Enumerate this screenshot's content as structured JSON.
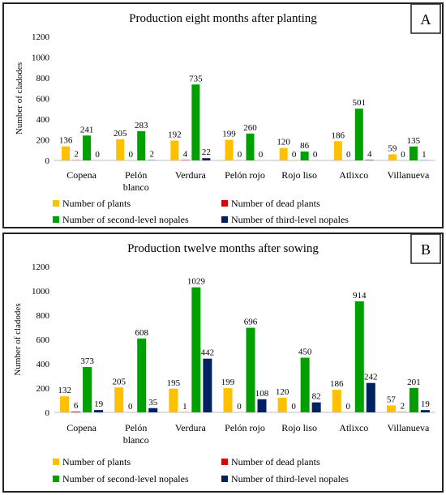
{
  "chart_data": [
    {
      "type": "bar",
      "panel_letter": "A",
      "title": "Production eight months after planting",
      "ylabel": "Number of cladodes",
      "xlabel": "",
      "ylim": [
        0,
        1200
      ],
      "yticks": [
        0,
        200,
        400,
        600,
        800,
        1000,
        1200
      ],
      "grid": false,
      "legend_position": "bottom",
      "categories": [
        [
          "Copena"
        ],
        [
          "Pelón",
          "blanco"
        ],
        [
          "Verdura"
        ],
        [
          "Pelón rojo"
        ],
        [
          "Rojo liso"
        ],
        [
          "Atlixco"
        ],
        [
          "Villanueva"
        ]
      ],
      "series": [
        {
          "name": "Number of plants",
          "color": "#FFC000",
          "values": [
            136,
            205,
            192,
            199,
            120,
            186,
            59
          ]
        },
        {
          "name": "Number of dead plants",
          "color": "#E00000",
          "values": [
            2,
            0,
            4,
            0,
            0,
            0,
            0
          ]
        },
        {
          "name": "Number of second-level nopales",
          "color": "#00A000",
          "values": [
            241,
            283,
            735,
            260,
            86,
            501,
            135
          ]
        },
        {
          "name": "Number of third-level nopales",
          "color": "#002060",
          "values": [
            0,
            2,
            22,
            0,
            0,
            4,
            1
          ]
        }
      ]
    },
    {
      "type": "bar",
      "panel_letter": "B",
      "title": "Production twelve months after sowing",
      "ylabel": "Number of cladodes",
      "xlabel": "",
      "ylim": [
        0,
        1200
      ],
      "yticks": [
        0,
        200,
        400,
        600,
        800,
        1000,
        1200
      ],
      "grid": false,
      "legend_position": "bottom",
      "categories": [
        [
          "Copena"
        ],
        [
          "Pelón",
          "blanco"
        ],
        [
          "Verdura"
        ],
        [
          "Pelón rojo"
        ],
        [
          "Rojo liso"
        ],
        [
          "Atlixco"
        ],
        [
          "Villanueva"
        ]
      ],
      "series": [
        {
          "name": "Number of plants",
          "color": "#FFC000",
          "values": [
            132,
            205,
            195,
            199,
            120,
            186,
            57
          ]
        },
        {
          "name": "Number of dead plants",
          "color": "#E00000",
          "values": [
            6,
            0,
            1,
            0,
            0,
            0,
            2
          ]
        },
        {
          "name": "Number of second-level nopales",
          "color": "#00A000",
          "values": [
            373,
            608,
            1029,
            696,
            450,
            914,
            201
          ]
        },
        {
          "name": "Number of third-level nopales",
          "color": "#002060",
          "values": [
            19,
            35,
            442,
            108,
            82,
            242,
            19
          ]
        }
      ]
    }
  ]
}
